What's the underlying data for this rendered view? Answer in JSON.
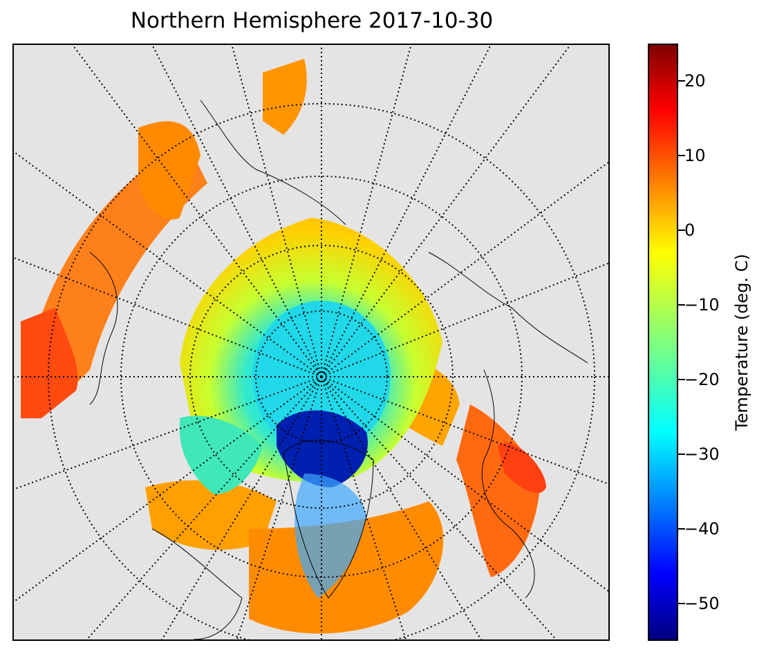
{
  "title": "Northern Hemisphere 2017-10-30",
  "map": {
    "projection": "north-polar-stereographic",
    "background_color": "#e4e4e4",
    "graticule": "dotted",
    "coastline_color": "#000000"
  },
  "colorbar": {
    "label": "Temperature (deg. C)",
    "min": -55,
    "max": 25,
    "ticks": [
      "20",
      "10",
      "0",
      "−10",
      "−20",
      "−30",
      "−40",
      "−50"
    ],
    "tick_values": [
      20,
      10,
      0,
      -10,
      -20,
      -30,
      -40,
      -50
    ],
    "colormap": "jet",
    "colors": [
      "#00007f",
      "#0000ff",
      "#007fff",
      "#00ffff",
      "#7fff7f",
      "#ffff00",
      "#ff7f00",
      "#ff0000",
      "#7f0000"
    ]
  }
}
